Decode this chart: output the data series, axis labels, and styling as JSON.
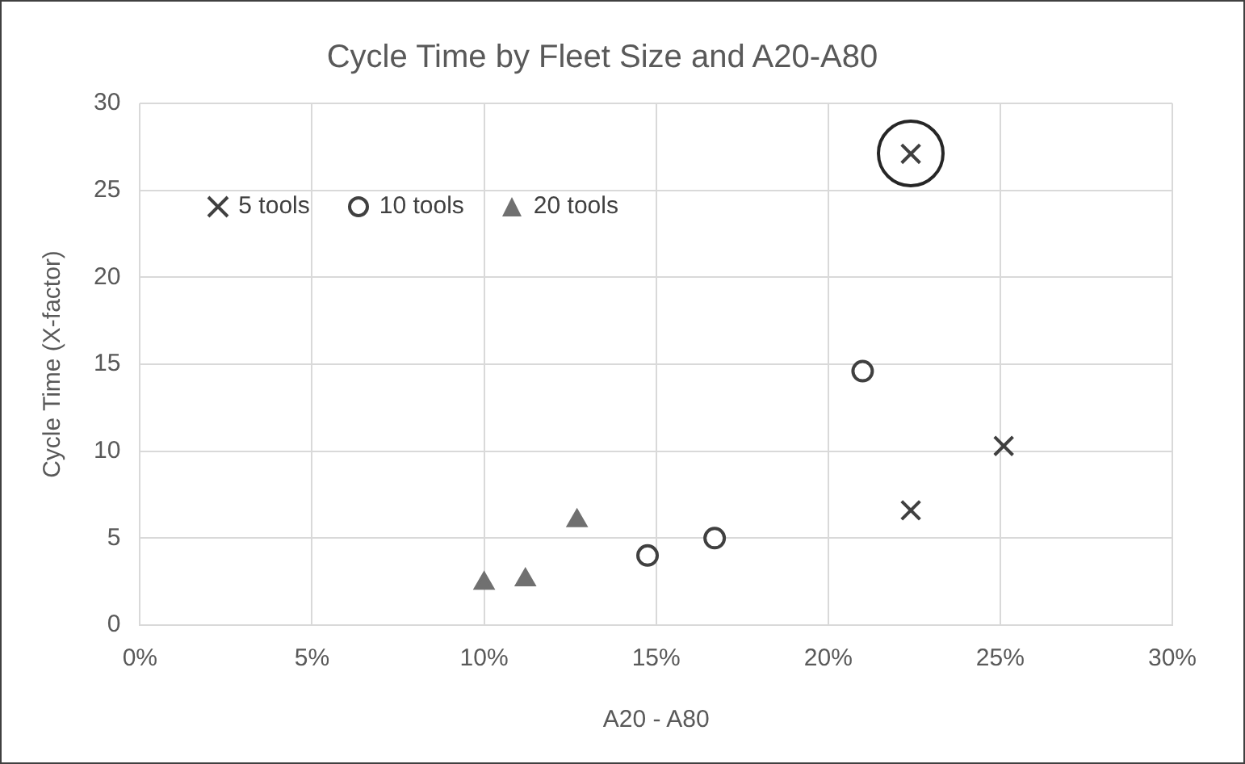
{
  "chart_data": {
    "type": "scatter",
    "title": "Cycle Time by Fleet Size and A20-A80",
    "xlabel": "A20 - A80",
    "ylabel": "Cycle Time (X-factor)",
    "xlim": [
      0,
      0.3
    ],
    "xticks": [
      {
        "value": 0,
        "label": "0%"
      },
      {
        "value": 0.05,
        "label": "5%"
      },
      {
        "value": 0.1,
        "label": "10%"
      },
      {
        "value": 0.15,
        "label": "15%"
      },
      {
        "value": 0.2,
        "label": "20%"
      },
      {
        "value": 0.25,
        "label": "25%"
      },
      {
        "value": 0.3,
        "label": "30%"
      }
    ],
    "ylim": [
      0,
      30
    ],
    "yticks": [
      0,
      5,
      10,
      15,
      20,
      25,
      30
    ],
    "grid": true,
    "legend": "top left",
    "series": [
      {
        "name": "5 tools",
        "color": "#404040",
        "marker": "cross",
        "x": [
          0.224,
          0.251,
          0.224
        ],
        "values": [
          6.6,
          10.3,
          27.1
        ]
      },
      {
        "name": "10 tools",
        "color": "#404040",
        "marker": "circle",
        "x": [
          0.1475,
          0.167,
          0.21
        ],
        "values": [
          4.0,
          5.0,
          14.6
        ]
      },
      {
        "name": "20 tools",
        "color": "#707070",
        "marker": "triangle",
        "x": [
          0.1,
          0.112,
          0.127
        ],
        "values": [
          2.4,
          2.6,
          6.0
        ]
      }
    ]
  }
}
